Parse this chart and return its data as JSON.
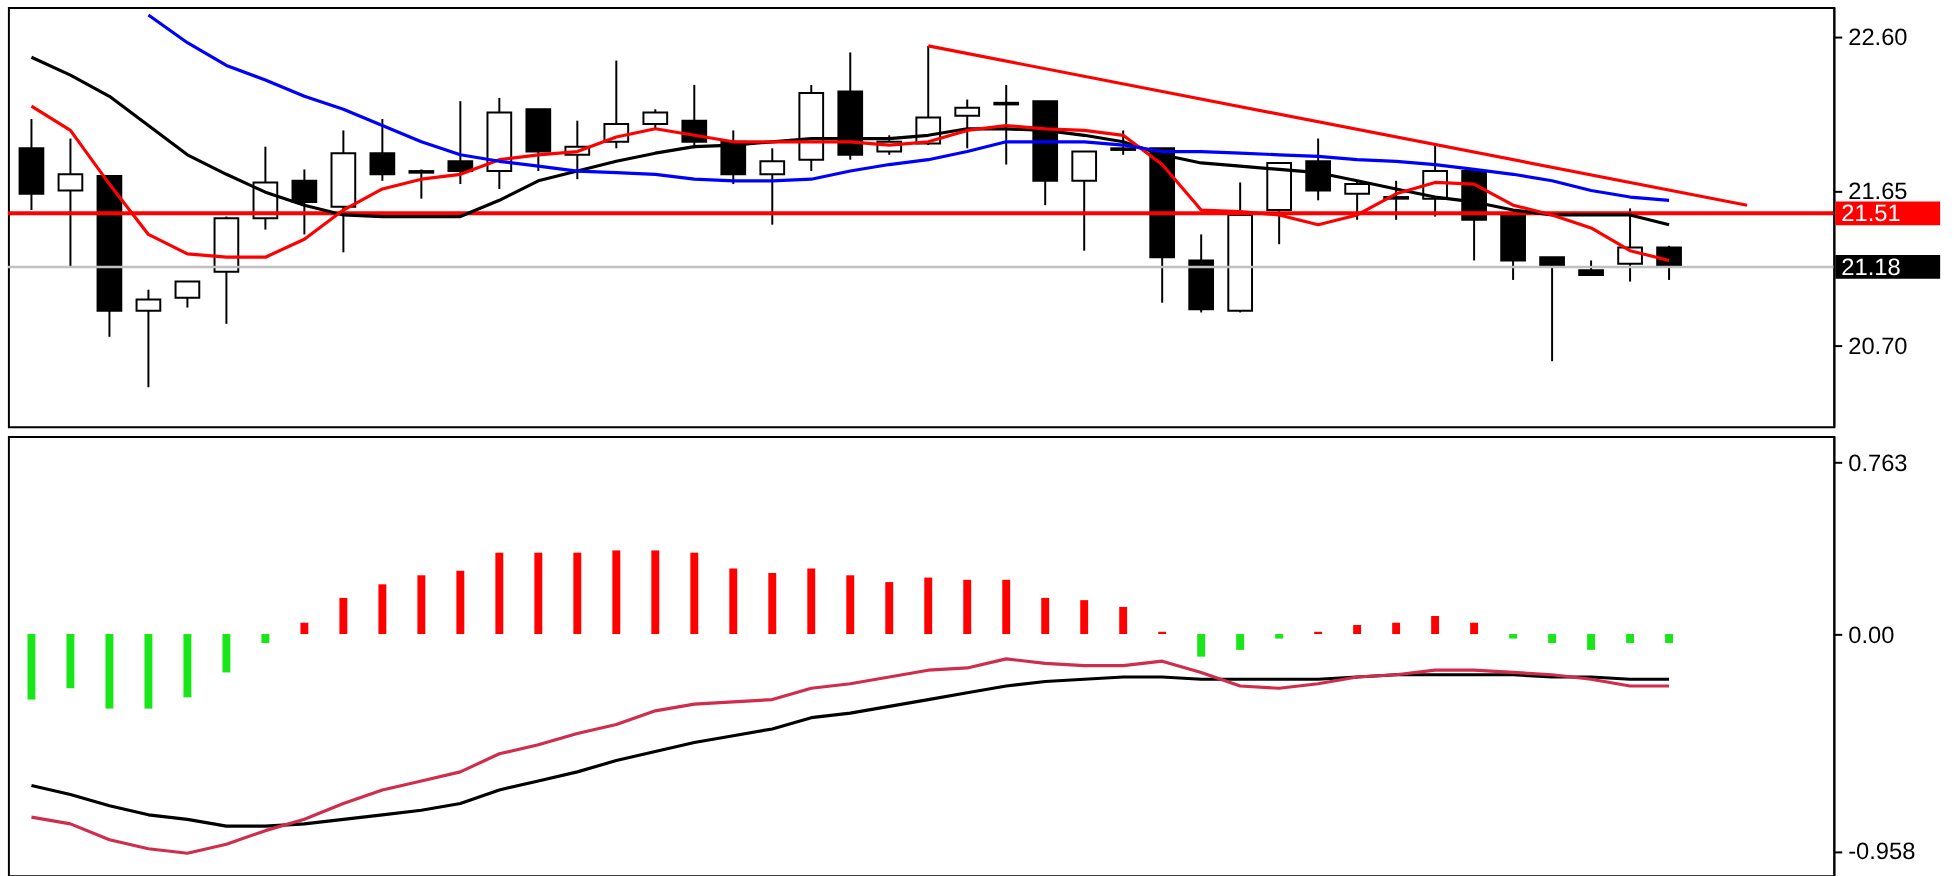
{
  "chart_data": [
    {
      "type": "candlestick",
      "categories": [
        null,
        null,
        null,
        null,
        null,
        null,
        null,
        null,
        null,
        null,
        null,
        null,
        null,
        null,
        null,
        null,
        null,
        null,
        null,
        null,
        null,
        null,
        null,
        null,
        null,
        null,
        null,
        null,
        null,
        null,
        null,
        null,
        null,
        null,
        null,
        null,
        null,
        null,
        null,
        null,
        null,
        null,
        null,
        null,
        null
      ],
      "ohlc": [
        [
          21.91,
          22.09,
          21.53,
          21.63
        ],
        [
          21.65,
          21.97,
          21.18,
          21.75
        ],
        [
          21.74,
          21.74,
          20.75,
          20.91
        ],
        [
          20.91,
          21.04,
          20.44,
          20.98
        ],
        [
          20.99,
          21.09,
          20.93,
          21.09
        ],
        [
          21.15,
          21.49,
          20.83,
          21.48
        ],
        [
          21.48,
          21.92,
          21.41,
          21.7
        ],
        [
          21.71,
          21.78,
          21.38,
          21.58
        ],
        [
          21.55,
          22.02,
          21.27,
          21.88
        ],
        [
          21.88,
          22.09,
          21.71,
          21.75
        ],
        [
          21.77,
          21.78,
          21.6,
          21.76
        ],
        [
          21.83,
          22.2,
          21.69,
          21.77
        ],
        [
          21.77,
          22.22,
          21.66,
          22.13
        ],
        [
          22.15,
          22.15,
          21.77,
          21.89
        ],
        [
          21.87,
          22.08,
          21.72,
          21.92
        ],
        [
          21.95,
          22.45,
          21.91,
          22.06
        ],
        [
          22.06,
          22.15,
          22.03,
          22.13
        ],
        [
          22.08,
          22.3,
          21.91,
          21.95
        ],
        [
          21.95,
          22.02,
          21.69,
          21.75
        ],
        [
          21.75,
          21.91,
          21.44,
          21.83
        ],
        [
          21.84,
          22.3,
          21.77,
          22.25
        ],
        [
          22.26,
          22.5,
          21.84,
          21.87
        ],
        [
          21.89,
          21.99,
          21.87,
          21.95
        ],
        [
          21.94,
          22.54,
          21.93,
          22.1
        ],
        [
          22.11,
          22.21,
          21.91,
          22.16
        ],
        [
          22.19,
          22.3,
          21.81,
          22.18
        ],
        [
          22.2,
          22.2,
          21.56,
          21.71
        ],
        [
          21.71,
          21.89,
          21.28,
          21.89
        ],
        [
          21.91,
          22.02,
          21.87,
          21.9
        ],
        [
          21.91,
          21.91,
          20.96,
          21.24
        ],
        [
          21.22,
          21.38,
          20.9,
          20.92
        ],
        [
          20.91,
          21.7,
          20.9,
          21.5
        ],
        [
          21.53,
          21.82,
          21.32,
          21.82
        ],
        [
          21.83,
          21.97,
          21.59,
          21.65
        ],
        [
          21.63,
          21.71,
          21.47,
          21.69
        ],
        [
          21.6,
          21.71,
          21.47,
          21.61
        ],
        [
          21.6,
          21.93,
          21.49,
          21.77
        ],
        [
          21.77,
          21.77,
          21.22,
          21.47
        ],
        [
          21.5,
          21.5,
          21.1,
          21.22
        ],
        [
          21.24,
          21.24,
          20.6,
          21.18
        ],
        [
          21.16,
          21.22,
          21.13,
          21.13
        ],
        [
          21.2,
          21.54,
          21.09,
          21.3
        ],
        [
          21.3,
          21.31,
          21.1,
          21.19
        ],
        null,
        null
      ],
      "series": [
        {
          "type": "line",
          "color": "#000000",
          "values": [
            22.47,
            22.36,
            22.23,
            22.05,
            21.87,
            21.75,
            21.64,
            21.56,
            21.5,
            21.49,
            21.49,
            21.49,
            21.59,
            21.71,
            21.77,
            21.83,
            21.88,
            21.92,
            21.93,
            21.95,
            21.97,
            21.97,
            21.97,
            21.99,
            22.03,
            22.03,
            22.02,
            21.99,
            21.95,
            21.87,
            21.82,
            21.8,
            21.78,
            21.76,
            21.71,
            21.66,
            21.61,
            21.58,
            21.53,
            21.5,
            21.5,
            21.5,
            21.44,
            null,
            null
          ]
        },
        {
          "type": "line",
          "color": "#ff0000",
          "values": [
            22.17,
            22.02,
            21.69,
            21.38,
            21.26,
            21.24,
            21.24,
            21.35,
            21.53,
            21.66,
            21.72,
            21.75,
            21.84,
            21.87,
            21.89,
            21.98,
            22.03,
            21.99,
            21.95,
            21.95,
            21.95,
            21.95,
            21.93,
            21.95,
            22.02,
            22.05,
            22.03,
            22.02,
            21.99,
            21.81,
            21.53,
            21.52,
            21.5,
            21.44,
            21.5,
            21.63,
            21.7,
            21.69,
            21.56,
            21.5,
            21.42,
            21.28,
            21.22,
            null,
            null
          ]
        },
        {
          "type": "line",
          "color": "#0000ff",
          "values": [
            null,
            null,
            null,
            22.73,
            22.56,
            22.42,
            22.33,
            22.23,
            22.15,
            22.05,
            21.95,
            21.87,
            21.83,
            21.8,
            21.77,
            21.76,
            21.75,
            21.72,
            21.71,
            21.71,
            21.72,
            21.77,
            21.81,
            21.84,
            21.89,
            21.95,
            21.95,
            21.95,
            21.93,
            21.89,
            21.89,
            21.88,
            21.87,
            21.86,
            21.84,
            21.83,
            21.81,
            21.78,
            21.75,
            21.71,
            21.65,
            21.61,
            21.59,
            null,
            null
          ]
        },
        {
          "type": "line",
          "color": "#ff0000",
          "values": [
            null,
            null,
            null,
            null,
            null,
            null,
            null,
            null,
            null,
            null,
            null,
            null,
            null,
            null,
            null,
            null,
            null,
            null,
            null,
            null,
            null,
            null,
            null,
            22.54,
            null,
            null,
            null,
            null,
            null,
            null,
            null,
            null,
            null,
            null,
            null,
            null,
            null,
            null,
            null,
            null,
            null,
            null,
            null,
            null,
            21.56
          ]
        }
      ],
      "ref_lines": [
        {
          "axis": "y",
          "value": 21.51,
          "label": "21.51",
          "color": "#ff0000"
        },
        {
          "axis": "y",
          "value": 21.18,
          "label": "21.18",
          "color": "#c0c0c0"
        }
      ],
      "ylim": [
        20.2,
        22.78
      ],
      "yticks": [
        {
          "value": 22.6,
          "label": "22.60"
        },
        21.65,
        {
          "value": 20.7,
          "label": "20.70"
        }
      ],
      "tick_labels": "y",
      "grid": false
    },
    {
      "type": "bar",
      "categories": [
        null,
        null,
        null,
        null,
        null,
        null,
        null,
        null,
        null,
        null,
        null,
        null,
        null,
        null,
        null,
        null,
        null,
        null,
        null,
        null,
        null,
        null,
        null,
        null,
        null,
        null,
        null,
        null,
        null,
        null,
        null,
        null,
        null,
        null,
        null,
        null,
        null,
        null,
        null,
        null,
        null,
        null,
        null,
        null,
        null
      ],
      "series": [
        {
          "type": "bar",
          "values": [
            -0.29,
            -0.24,
            -0.33,
            -0.33,
            -0.28,
            -0.17,
            -0.04,
            0.05,
            0.16,
            0.22,
            0.26,
            0.28,
            0.36,
            0.36,
            0.36,
            0.37,
            0.37,
            0.36,
            0.29,
            0.27,
            0.29,
            0.26,
            0.23,
            0.25,
            0.24,
            0.24,
            0.16,
            0.15,
            0.12,
            0.01,
            -0.1,
            -0.07,
            -0.02,
            0.01,
            0.04,
            0.05,
            0.08,
            0.05,
            -0.02,
            -0.04,
            -0.07,
            -0.04,
            -0.04,
            null,
            null
          ],
          "colors": [
            "#18e618",
            "#18e618",
            "#18e618",
            "#18e618",
            "#18e618",
            "#18e618",
            "#18e618",
            "#ff0000",
            "#ff0000",
            "#ff0000",
            "#ff0000",
            "#ff0000",
            "#ff0000",
            "#ff0000",
            "#ff0000",
            "#ff0000",
            "#ff0000",
            "#ff0000",
            "#ff0000",
            "#ff0000",
            "#ff0000",
            "#ff0000",
            "#ff0000",
            "#ff0000",
            "#ff0000",
            "#ff0000",
            "#ff0000",
            "#ff0000",
            "#ff0000",
            "#ff0000",
            "#18e618",
            "#18e618",
            "#18e618",
            "#ff0000",
            "#ff0000",
            "#ff0000",
            "#ff0000",
            "#ff0000",
            "#18e618",
            "#18e618",
            "#18e618",
            "#18e618",
            "#18e618",
            null,
            null
          ]
        },
        {
          "type": "line",
          "color": "#000000",
          "values": [
            -0.67,
            -0.71,
            -0.76,
            -0.8,
            -0.82,
            -0.85,
            -0.85,
            -0.84,
            -0.82,
            -0.8,
            -0.78,
            -0.75,
            -0.69,
            -0.65,
            -0.61,
            -0.56,
            -0.52,
            -0.48,
            -0.45,
            -0.42,
            -0.37,
            -0.35,
            -0.32,
            -0.29,
            -0.26,
            -0.23,
            -0.21,
            -0.2,
            -0.19,
            -0.19,
            -0.2,
            -0.2,
            -0.2,
            -0.2,
            -0.19,
            -0.18,
            -0.18,
            -0.18,
            -0.18,
            -0.19,
            -0.19,
            -0.2,
            -0.2,
            null,
            null
          ]
        },
        {
          "type": "line",
          "color": "#d02c4c",
          "values": [
            -0.81,
            -0.84,
            -0.91,
            -0.95,
            -0.97,
            -0.93,
            -0.87,
            -0.82,
            -0.75,
            -0.69,
            -0.65,
            -0.61,
            -0.53,
            -0.49,
            -0.44,
            -0.4,
            -0.34,
            -0.31,
            -0.3,
            -0.29,
            -0.24,
            -0.22,
            -0.19,
            -0.16,
            -0.15,
            -0.11,
            -0.13,
            -0.14,
            -0.14,
            -0.12,
            -0.17,
            -0.23,
            -0.24,
            -0.22,
            -0.19,
            -0.18,
            -0.16,
            -0.16,
            -0.17,
            -0.18,
            -0.2,
            -0.23,
            -0.23,
            null,
            null
          ]
        }
      ],
      "ylim": [
        -1.067,
        0.876
      ],
      "yticks": [
        0.763,
        {
          "value": 0,
          "label": "0.00"
        },
        -0.958
      ],
      "tick_labels": "y",
      "grid": false
    }
  ]
}
